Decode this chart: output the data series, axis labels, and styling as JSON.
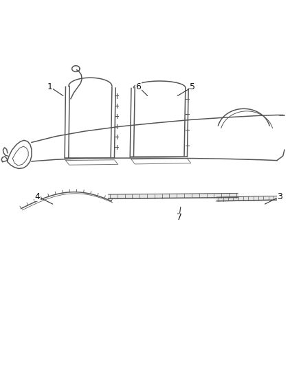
{
  "bg_color": "#ffffff",
  "line_color": "#555555",
  "figsize": [
    4.38,
    5.33
  ],
  "dpi": 100,
  "callouts": [
    {
      "num": "1",
      "xl": 0.21,
      "yl": 0.79,
      "xt": 0.165,
      "yt": 0.82
    },
    {
      "num": "3",
      "xl": 0.88,
      "yl": 0.43,
      "xt": 0.93,
      "yt": 0.455
    },
    {
      "num": "4",
      "xl": 0.175,
      "yl": 0.43,
      "xt": 0.125,
      "yt": 0.455
    },
    {
      "num": "5",
      "xl": 0.59,
      "yl": 0.79,
      "xt": 0.64,
      "yt": 0.82
    },
    {
      "num": "6",
      "xl": 0.49,
      "yl": 0.79,
      "xt": 0.46,
      "yt": 0.82
    },
    {
      "num": "7",
      "xl": 0.6,
      "yl": 0.42,
      "xt": 0.595,
      "yt": 0.385
    }
  ]
}
